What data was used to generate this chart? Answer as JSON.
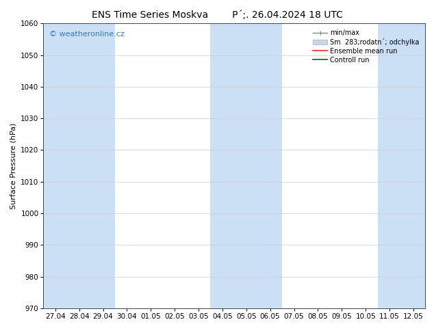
{
  "title_left": "ENS Time Series Moskva",
  "title_right": "P´;. 26.04.2024 18 UTC",
  "ylabel": "Surface Pressure (hPa)",
  "ylim": [
    970,
    1060
  ],
  "yticks": [
    970,
    980,
    990,
    1000,
    1010,
    1020,
    1030,
    1040,
    1050,
    1060
  ],
  "x_labels": [
    "27.04",
    "28.04",
    "29.04",
    "30.04",
    "01.05",
    "02.05",
    "03.05",
    "04.05",
    "05.05",
    "06.05",
    "07.05",
    "08.05",
    "09.05",
    "10.05",
    "11.05",
    "12.05"
  ],
  "shaded_indices": [
    0,
    1,
    2,
    7,
    8,
    9,
    14,
    15
  ],
  "shade_color": "#cce0f5",
  "background_color": "#ffffff",
  "legend_entries": [
    "min/max",
    "Sm  283;rodatn´; odchylka",
    "Ensemble mean run",
    "Controll run"
  ],
  "legend_colors_line": [
    "#aaaaaa",
    "#bbccdd",
    "#ff0000",
    "#008000"
  ],
  "watermark": "© weatheronline.cz",
  "watermark_color": "#3377bb",
  "title_fontsize": 10,
  "label_fontsize": 8,
  "tick_fontsize": 7.5
}
